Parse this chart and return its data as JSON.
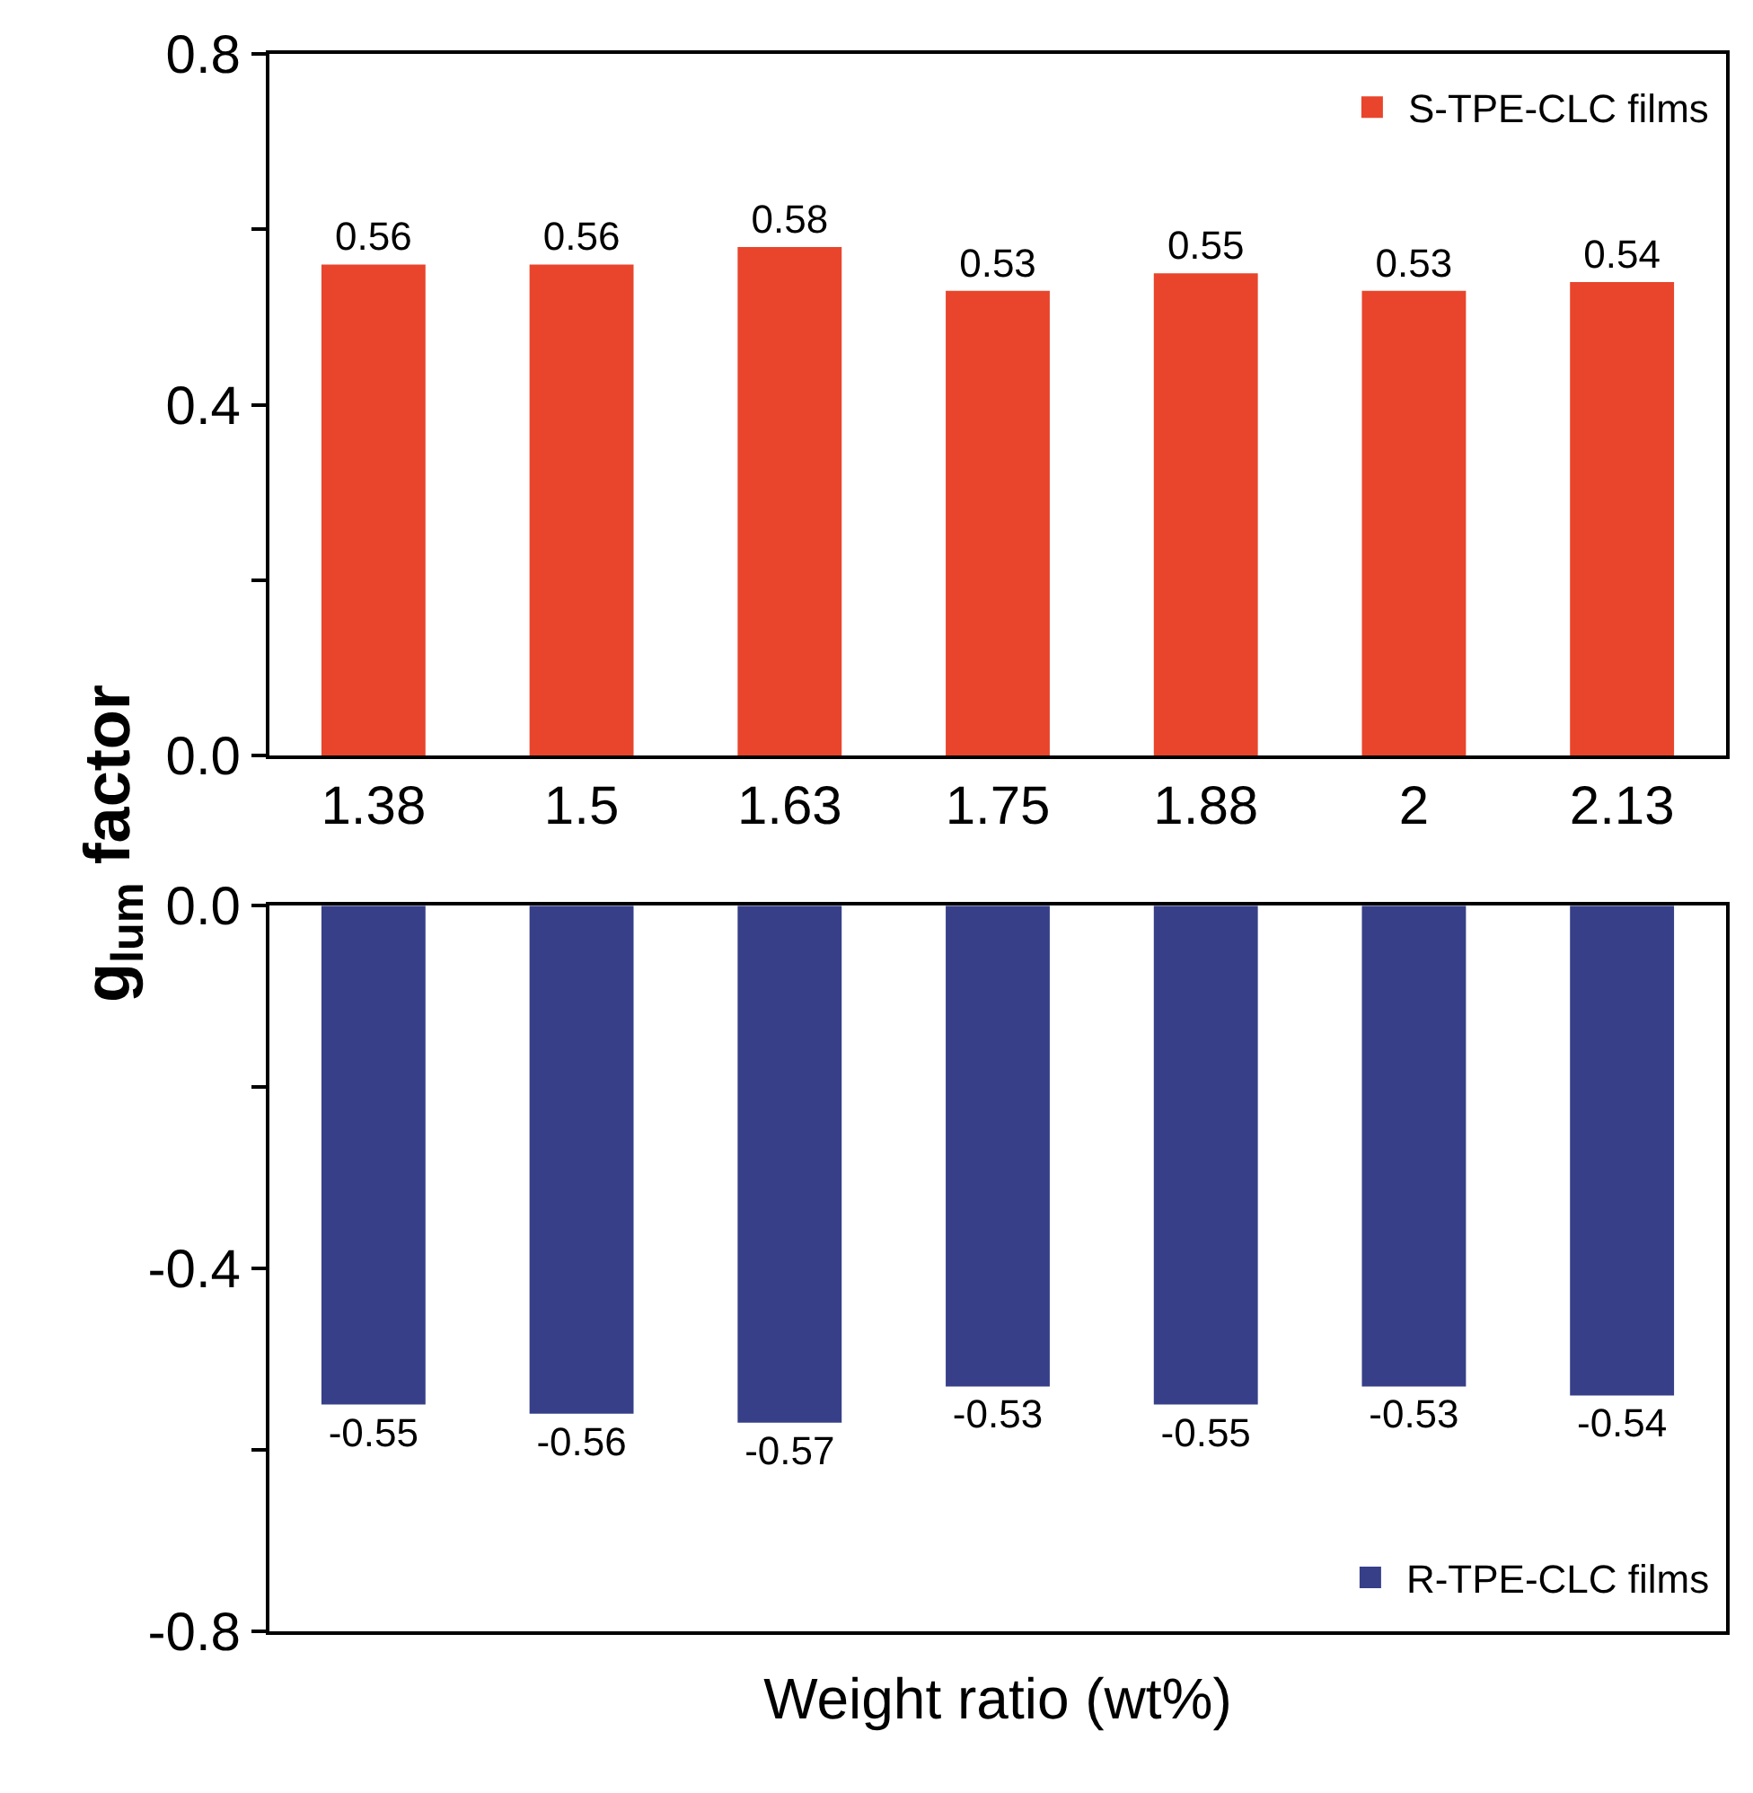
{
  "chart_data": [
    {
      "type": "bar",
      "ylabel": "g$_{lum}$ factor",
      "categories": [
        "1.38",
        "1.5",
        "1.63",
        "1.75",
        "1.88",
        "2",
        "2.13"
      ],
      "series": [
        {
          "name": "S-TPE-CLC films",
          "color": "#e8452c",
          "values": [
            0.56,
            0.56,
            0.58,
            0.53,
            0.55,
            0.53,
            0.54
          ]
        }
      ],
      "ylim": [
        0,
        0.8
      ],
      "yticks": [
        {
          "value": 0,
          "label": "0.0"
        },
        {
          "value": 0.2,
          "label": null
        },
        {
          "value": 0.4,
          "label": "0.4"
        },
        {
          "value": 0.6,
          "label": null
        },
        {
          "value": 0.8,
          "label": "0.8"
        }
      ],
      "data_labels": true,
      "legend": "top right"
    },
    {
      "type": "bar",
      "xlabel": "Weight ratio (wt%)",
      "categories": [
        "1.38",
        "1.5",
        "1.63",
        "1.75",
        "1.88",
        "2",
        "2.13"
      ],
      "series": [
        {
          "name": "R-TPE-CLC films",
          "color": "#363f88",
          "values": [
            -0.55,
            -0.56,
            -0.57,
            -0.53,
            -0.55,
            -0.53,
            -0.54
          ]
        }
      ],
      "ylim": [
        -0.8,
        0
      ],
      "yticks": [
        {
          "value": 0,
          "label": "0.0"
        },
        {
          "value": -0.2,
          "label": null
        },
        {
          "value": -0.4,
          "label": "-0.4"
        },
        {
          "value": -0.6,
          "label": null
        },
        {
          "value": -0.8,
          "label": "-0.8"
        }
      ],
      "tick_labels": "y",
      "data_labels": true,
      "legend": "bottom right"
    }
  ]
}
